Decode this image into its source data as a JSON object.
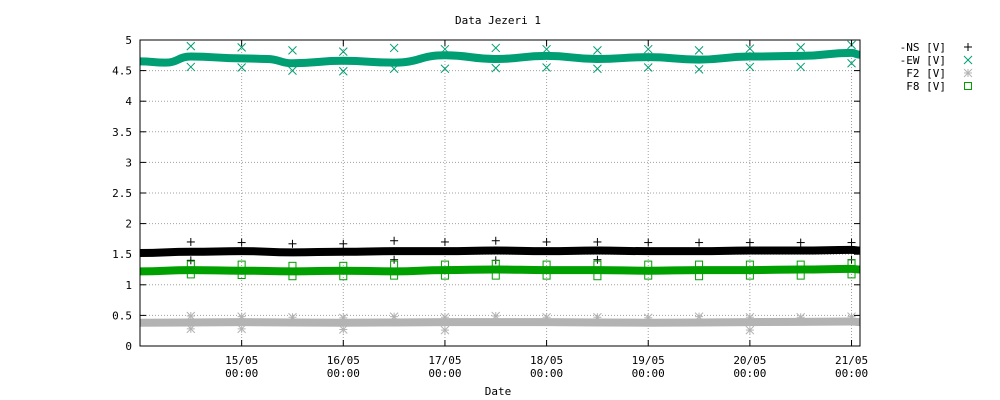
{
  "chart_data": {
    "type": "scatter",
    "title": "Data Jezeri 1",
    "xlabel": "Date",
    "ylabel": "",
    "ylim": [
      0,
      5
    ],
    "yticks": [
      "0",
      "0.5",
      "1",
      "1.5",
      "2",
      "2.5",
      "3",
      "3.5",
      "4",
      "4.5",
      "5"
    ],
    "xrange": [
      "14/05 00:00",
      "21/05 02:00"
    ],
    "xticks": [
      {
        "date": "15/05",
        "time": "00:00"
      },
      {
        "date": "16/05",
        "time": "00:00"
      },
      {
        "date": "17/05",
        "time": "00:00"
      },
      {
        "date": "18/05",
        "time": "00:00"
      },
      {
        "date": "19/05",
        "time": "00:00"
      },
      {
        "date": "20/05",
        "time": "00:00"
      },
      {
        "date": "21/05",
        "time": "00:00"
      }
    ],
    "grid": true,
    "legend_position": "top-right, outside plot",
    "series": [
      {
        "name": "-NS [V]",
        "marker": "plus",
        "color": "#000000",
        "continuous": [
          {
            "x": "14/05 00:00",
            "y": 1.52
          },
          {
            "x": "14/05 12:00",
            "y": 1.54
          },
          {
            "x": "15/05 00:00",
            "y": 1.55
          },
          {
            "x": "15/05 12:00",
            "y": 1.53
          },
          {
            "x": "16/05 00:00",
            "y": 1.54
          },
          {
            "x": "16/05 12:00",
            "y": 1.55
          },
          {
            "x": "17/05 00:00",
            "y": 1.55
          },
          {
            "x": "17/05 12:00",
            "y": 1.56
          },
          {
            "x": "18/05 00:00",
            "y": 1.55
          },
          {
            "x": "18/05 12:00",
            "y": 1.56
          },
          {
            "x": "19/05 00:00",
            "y": 1.55
          },
          {
            "x": "19/05 12:00",
            "y": 1.55
          },
          {
            "x": "20/05 00:00",
            "y": 1.56
          },
          {
            "x": "20/05 12:00",
            "y": 1.56
          },
          {
            "x": "21/05 00:00",
            "y": 1.57
          },
          {
            "x": "21/05 02:00",
            "y": 1.56
          }
        ],
        "outliers": [
          {
            "x": "14/05 12:00",
            "y": 1.7
          },
          {
            "x": "15/05 00:00",
            "y": 1.69
          },
          {
            "x": "15/05 12:00",
            "y": 1.67
          },
          {
            "x": "16/05 00:00",
            "y": 1.67
          },
          {
            "x": "16/05 12:00",
            "y": 1.72
          },
          {
            "x": "17/05 00:00",
            "y": 1.7
          },
          {
            "x": "17/05 12:00",
            "y": 1.72
          },
          {
            "x": "18/05 00:00",
            "y": 1.7
          },
          {
            "x": "18/05 12:00",
            "y": 1.7
          },
          {
            "x": "19/05 00:00",
            "y": 1.69
          },
          {
            "x": "19/05 12:00",
            "y": 1.69
          },
          {
            "x": "20/05 00:00",
            "y": 1.69
          },
          {
            "x": "20/05 12:00",
            "y": 1.69
          },
          {
            "x": "21/05 00:00",
            "y": 1.69
          },
          {
            "x": "14/05 12:00",
            "y": 1.4
          },
          {
            "x": "16/05 12:00",
            "y": 1.41
          },
          {
            "x": "17/05 12:00",
            "y": 1.4
          },
          {
            "x": "18/05 12:00",
            "y": 1.41
          },
          {
            "x": "21/05 00:00",
            "y": 1.41
          }
        ]
      },
      {
        "name": "-EW [V]",
        "marker": "cross",
        "color": "#009e73",
        "continuous": [
          {
            "x": "14/05 00:00",
            "y": 4.65
          },
          {
            "x": "14/05 06:00",
            "y": 4.63
          },
          {
            "x": "14/05 12:00",
            "y": 4.73
          },
          {
            "x": "15/05 00:00",
            "y": 4.7
          },
          {
            "x": "15/05 06:00",
            "y": 4.69
          },
          {
            "x": "15/05 12:00",
            "y": 4.62
          },
          {
            "x": "16/05 00:00",
            "y": 4.66
          },
          {
            "x": "16/05 12:00",
            "y": 4.63
          },
          {
            "x": "17/05 00:00",
            "y": 4.75
          },
          {
            "x": "17/05 12:00",
            "y": 4.69
          },
          {
            "x": "18/05 00:00",
            "y": 4.74
          },
          {
            "x": "18/05 12:00",
            "y": 4.69
          },
          {
            "x": "19/05 00:00",
            "y": 4.72
          },
          {
            "x": "19/05 12:00",
            "y": 4.68
          },
          {
            "x": "20/05 00:00",
            "y": 4.73
          },
          {
            "x": "20/05 12:00",
            "y": 4.74
          },
          {
            "x": "21/05 00:00",
            "y": 4.79
          },
          {
            "x": "21/05 02:00",
            "y": 4.76
          }
        ],
        "outliers": [
          {
            "x": "14/05 12:00",
            "y": 4.9
          },
          {
            "x": "15/05 00:00",
            "y": 4.88
          },
          {
            "x": "15/05 12:00",
            "y": 4.83
          },
          {
            "x": "16/05 00:00",
            "y": 4.81
          },
          {
            "x": "16/05 12:00",
            "y": 4.87
          },
          {
            "x": "17/05 00:00",
            "y": 4.85
          },
          {
            "x": "17/05 12:00",
            "y": 4.87
          },
          {
            "x": "18/05 00:00",
            "y": 4.85
          },
          {
            "x": "18/05 12:00",
            "y": 4.83
          },
          {
            "x": "19/05 00:00",
            "y": 4.85
          },
          {
            "x": "19/05 12:00",
            "y": 4.83
          },
          {
            "x": "20/05 00:00",
            "y": 4.86
          },
          {
            "x": "20/05 12:00",
            "y": 4.88
          },
          {
            "x": "21/05 00:00",
            "y": 4.92
          },
          {
            "x": "14/05 12:00",
            "y": 4.56
          },
          {
            "x": "15/05 00:00",
            "y": 4.55
          },
          {
            "x": "15/05 12:00",
            "y": 4.5
          },
          {
            "x": "16/05 00:00",
            "y": 4.49
          },
          {
            "x": "16/05 12:00",
            "y": 4.53
          },
          {
            "x": "17/05 00:00",
            "y": 4.53
          },
          {
            "x": "17/05 12:00",
            "y": 4.54
          },
          {
            "x": "18/05 00:00",
            "y": 4.55
          },
          {
            "x": "18/05 12:00",
            "y": 4.53
          },
          {
            "x": "19/05 00:00",
            "y": 4.55
          },
          {
            "x": "19/05 12:00",
            "y": 4.52
          },
          {
            "x": "20/05 00:00",
            "y": 4.56
          },
          {
            "x": "20/05 12:00",
            "y": 4.56
          },
          {
            "x": "21/05 00:00",
            "y": 4.62
          }
        ]
      },
      {
        "name": "F2 [V]",
        "marker": "star",
        "color": "#b3b3b3",
        "continuous": [
          {
            "x": "14/05 00:00",
            "y": 0.38
          },
          {
            "x": "15/05 00:00",
            "y": 0.39
          },
          {
            "x": "16/05 00:00",
            "y": 0.38
          },
          {
            "x": "17/05 00:00",
            "y": 0.39
          },
          {
            "x": "18/05 00:00",
            "y": 0.39
          },
          {
            "x": "19/05 00:00",
            "y": 0.38
          },
          {
            "x": "20/05 00:00",
            "y": 0.39
          },
          {
            "x": "21/05 00:00",
            "y": 0.4
          },
          {
            "x": "21/05 02:00",
            "y": 0.39
          }
        ],
        "outliers": [
          {
            "x": "14/05 12:00",
            "y": 0.49
          },
          {
            "x": "15/05 00:00",
            "y": 0.48
          },
          {
            "x": "15/05 12:00",
            "y": 0.47
          },
          {
            "x": "16/05 00:00",
            "y": 0.46
          },
          {
            "x": "16/05 12:00",
            "y": 0.48
          },
          {
            "x": "17/05 00:00",
            "y": 0.47
          },
          {
            "x": "17/05 12:00",
            "y": 0.49
          },
          {
            "x": "18/05 00:00",
            "y": 0.47
          },
          {
            "x": "18/05 12:00",
            "y": 0.47
          },
          {
            "x": "19/05 00:00",
            "y": 0.46
          },
          {
            "x": "19/05 12:00",
            "y": 0.48
          },
          {
            "x": "20/05 00:00",
            "y": 0.47
          },
          {
            "x": "20/05 12:00",
            "y": 0.47
          },
          {
            "x": "21/05 00:00",
            "y": 0.48
          },
          {
            "x": "14/05 12:00",
            "y": 0.28
          },
          {
            "x": "15/05 00:00",
            "y": 0.28
          },
          {
            "x": "16/05 00:00",
            "y": 0.27
          },
          {
            "x": "17/05 00:00",
            "y": 0.26
          },
          {
            "x": "20/05 00:00",
            "y": 0.26
          }
        ]
      },
      {
        "name": "F8 [V]",
        "marker": "square",
        "color": "#00a000",
        "continuous": [
          {
            "x": "14/05 00:00",
            "y": 1.22
          },
          {
            "x": "14/05 12:00",
            "y": 1.24
          },
          {
            "x": "15/05 00:00",
            "y": 1.23
          },
          {
            "x": "15/05 12:00",
            "y": 1.22
          },
          {
            "x": "16/05 00:00",
            "y": 1.23
          },
          {
            "x": "16/05 12:00",
            "y": 1.22
          },
          {
            "x": "17/05 00:00",
            "y": 1.24
          },
          {
            "x": "17/05 12:00",
            "y": 1.25
          },
          {
            "x": "18/05 00:00",
            "y": 1.24
          },
          {
            "x": "18/05 12:00",
            "y": 1.24
          },
          {
            "x": "19/05 00:00",
            "y": 1.23
          },
          {
            "x": "19/05 12:00",
            "y": 1.24
          },
          {
            "x": "20/05 00:00",
            "y": 1.24
          },
          {
            "x": "20/05 12:00",
            "y": 1.25
          },
          {
            "x": "21/05 00:00",
            "y": 1.26
          },
          {
            "x": "21/05 02:00",
            "y": 1.25
          }
        ],
        "outliers": [
          {
            "x": "14/05 12:00",
            "y": 1.33
          },
          {
            "x": "15/05 00:00",
            "y": 1.33
          },
          {
            "x": "15/05 12:00",
            "y": 1.31
          },
          {
            "x": "16/05 00:00",
            "y": 1.31
          },
          {
            "x": "16/05 12:00",
            "y": 1.33
          },
          {
            "x": "17/05 00:00",
            "y": 1.33
          },
          {
            "x": "17/05 12:00",
            "y": 1.34
          },
          {
            "x": "18/05 00:00",
            "y": 1.33
          },
          {
            "x": "18/05 12:00",
            "y": 1.33
          },
          {
            "x": "19/05 00:00",
            "y": 1.33
          },
          {
            "x": "19/05 12:00",
            "y": 1.33
          },
          {
            "x": "20/05 00:00",
            "y": 1.33
          },
          {
            "x": "20/05 12:00",
            "y": 1.33
          },
          {
            "x": "21/05 00:00",
            "y": 1.35
          },
          {
            "x": "14/05 12:00",
            "y": 1.17
          },
          {
            "x": "15/05 00:00",
            "y": 1.16
          },
          {
            "x": "15/05 12:00",
            "y": 1.14
          },
          {
            "x": "16/05 00:00",
            "y": 1.14
          },
          {
            "x": "16/05 12:00",
            "y": 1.15
          },
          {
            "x": "17/05 00:00",
            "y": 1.15
          },
          {
            "x": "17/05 12:00",
            "y": 1.15
          },
          {
            "x": "18/05 00:00",
            "y": 1.15
          },
          {
            "x": "18/05 12:00",
            "y": 1.14
          },
          {
            "x": "19/05 00:00",
            "y": 1.15
          },
          {
            "x": "19/05 12:00",
            "y": 1.14
          },
          {
            "x": "20/05 00:00",
            "y": 1.15
          },
          {
            "x": "20/05 12:00",
            "y": 1.15
          },
          {
            "x": "21/05 00:00",
            "y": 1.17
          }
        ]
      }
    ]
  }
}
